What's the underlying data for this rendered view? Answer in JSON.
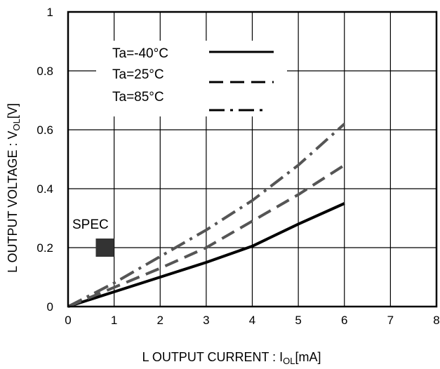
{
  "chart_data": {
    "type": "line",
    "xlabel": "L OUTPUT CURRENT : I",
    "xlabel_sub": "OL",
    "xlabel_unit": "[mA]",
    "ylabel": "L OUTPUT VOLTAGE : V",
    "ylabel_sub": "OL",
    "ylabel_unit": "[V]",
    "xlim": [
      0,
      8
    ],
    "ylim": [
      0,
      1
    ],
    "x_ticks": [
      0,
      1,
      2,
      3,
      4,
      5,
      6,
      7,
      8
    ],
    "y_ticks": [
      0,
      0.2,
      0.4,
      0.6,
      0.8,
      1
    ],
    "x_tick_labels": [
      "0",
      "1",
      "2",
      "3",
      "4",
      "5",
      "6",
      "7",
      "8"
    ],
    "y_tick_labels": [
      "0",
      "0.2",
      "0.4",
      "0.6",
      "0.8",
      "1"
    ],
    "grid": true,
    "legend_position": "top-left",
    "series": [
      {
        "name": "Ta=-40°C",
        "style": "solid",
        "color": "#000000",
        "x": [
          0,
          1,
          2,
          3,
          4,
          5,
          6
        ],
        "y": [
          0,
          0.05,
          0.1,
          0.15,
          0.205,
          0.28,
          0.35
        ]
      },
      {
        "name": "Ta=25°C",
        "style": "dashed",
        "color": "#555555",
        "x": [
          0,
          1,
          2,
          3,
          4,
          5,
          6
        ],
        "y": [
          0,
          0.065,
          0.13,
          0.2,
          0.29,
          0.38,
          0.48
        ]
      },
      {
        "name": "Ta=85°C",
        "style": "dash-dot",
        "color": "#555555",
        "x": [
          0,
          1,
          2,
          3,
          4,
          5,
          6
        ],
        "y": [
          0,
          0.08,
          0.17,
          0.26,
          0.36,
          0.48,
          0.62
        ]
      }
    ],
    "annotations": [
      {
        "label": "SPEC",
        "x": 0.8,
        "y": 0.2,
        "marker": "square",
        "color": "#333333"
      }
    ]
  }
}
